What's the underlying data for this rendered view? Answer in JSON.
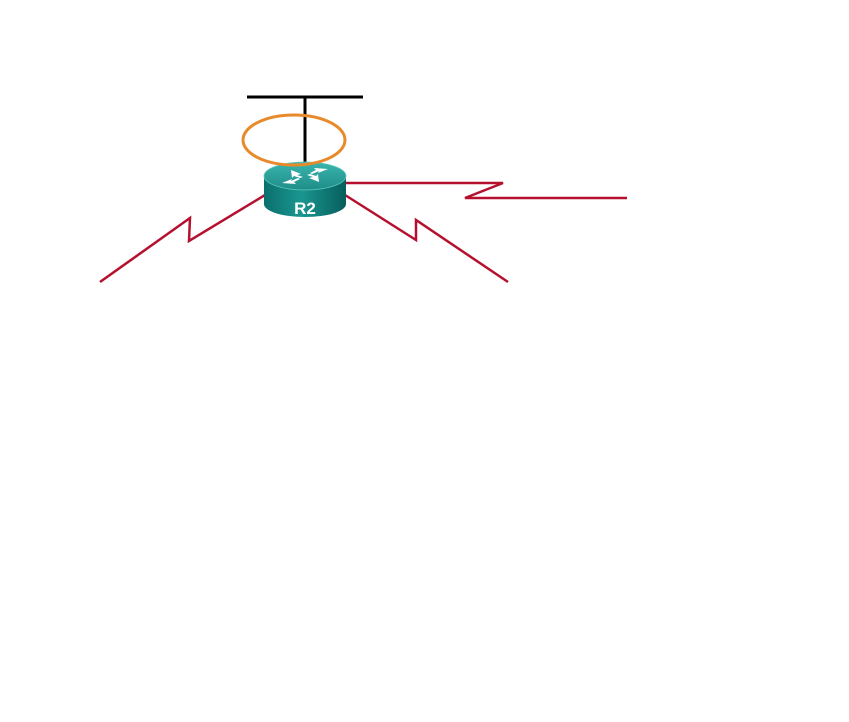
{
  "diagram": {
    "router": {
      "label": "R2",
      "icon": "router-icon"
    },
    "colors": {
      "router_body": "#0a7c7a",
      "router_top": "#2aa6a0",
      "serial_link": "#b5112f",
      "lan_segment": "#000000",
      "highlight_ring": "#e8892b",
      "background": "#ffffff"
    },
    "links": [
      {
        "type": "ethernet-lan",
        "name": "lan-segment"
      },
      {
        "type": "serial",
        "name": "serial-link-left"
      },
      {
        "type": "serial",
        "name": "serial-link-right-lower"
      },
      {
        "type": "serial",
        "name": "serial-link-right-upper"
      }
    ],
    "highlight": {
      "target": "lan-interface",
      "shape": "ellipse"
    }
  }
}
